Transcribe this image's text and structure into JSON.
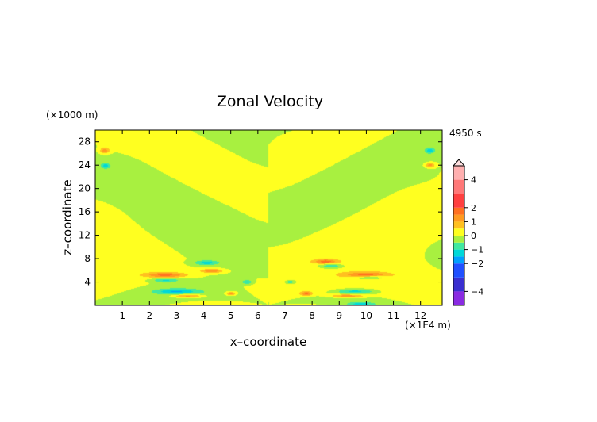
{
  "chart_data": {
    "type": "heatmap",
    "title": "Zonal Velocity",
    "xlabel": "x–coordinate",
    "ylabel": "z–coordinate",
    "x_unit": "(×1E4 m)",
    "y_unit": "(×1000 m)",
    "time_label": "4950 s",
    "xlim": [
      0,
      12.8
    ],
    "ylim": [
      0,
      30
    ],
    "x_ticks": [
      1,
      2,
      3,
      4,
      5,
      6,
      7,
      8,
      9,
      10,
      11,
      12
    ],
    "y_ticks": [
      4,
      8,
      12,
      16,
      20,
      24,
      28
    ],
    "grid": false,
    "colorbar": {
      "placement": "right",
      "range": [
        -5,
        5
      ],
      "tick_values": [
        4,
        2,
        1,
        0,
        -1,
        -2,
        -4
      ],
      "tick_labels": [
        "4",
        "2",
        "1",
        "0",
        "−1",
        "−2",
        "−4"
      ],
      "levels": [
        {
          "lo": -5,
          "hi": -4,
          "color": "#8a2be2"
        },
        {
          "lo": -4,
          "hi": -3,
          "color": "#3a2fd0"
        },
        {
          "lo": -3,
          "hi": -2,
          "color": "#2050ff"
        },
        {
          "lo": -2,
          "hi": -1.5,
          "color": "#00a0ff"
        },
        {
          "lo": -1.5,
          "hi": -1,
          "color": "#00d8d8"
        },
        {
          "lo": -1,
          "hi": -0.5,
          "color": "#40e8a0"
        },
        {
          "lo": -0.5,
          "hi": 0,
          "color": "#a8f040"
        },
        {
          "lo": 0,
          "hi": 0.5,
          "color": "#ffff20"
        },
        {
          "lo": 0.5,
          "hi": 1,
          "color": "#ffc020"
        },
        {
          "lo": 1,
          "hi": 1.5,
          "color": "#ff9a20"
        },
        {
          "lo": 1.5,
          "hi": 2,
          "color": "#ff7020"
        },
        {
          "lo": 2,
          "hi": 3,
          "color": "#ff4040"
        },
        {
          "lo": 3,
          "hi": 4,
          "color": "#ff7878"
        },
        {
          "lo": 4,
          "hi": 5,
          "color": "#ffb0b0"
        }
      ]
    },
    "field_features": [
      {
        "desc": "orange lobe",
        "x": 2.6,
        "z": 5.2,
        "sx": 0.75,
        "sz": 0.45,
        "value": 1.6
      },
      {
        "desc": "orange lobe",
        "x": 10.0,
        "z": 5.2,
        "sx": 0.75,
        "sz": 0.45,
        "value": 1.6
      },
      {
        "desc": "cyan lobe",
        "x": 3.0,
        "z": 2.4,
        "sx": 0.75,
        "sz": 0.45,
        "value": -1.3
      },
      {
        "desc": "cyan lobe",
        "x": 9.6,
        "z": 2.4,
        "sx": 0.75,
        "sz": 0.45,
        "value": -1.3
      },
      {
        "desc": "cyan lobe",
        "x": 10.1,
        "z": 4.8,
        "sx": 0.6,
        "sz": 0.35,
        "value": -1.2
      },
      {
        "desc": "cyan lobe",
        "x": 2.6,
        "z": 4.3,
        "sx": 0.5,
        "sz": 0.35,
        "value": -1.1
      },
      {
        "desc": "orange lobe",
        "x": 3.4,
        "z": 1.6,
        "sx": 0.6,
        "sz": 0.3,
        "value": 1.4
      },
      {
        "desc": "orange lobe",
        "x": 9.3,
        "z": 1.6,
        "sx": 0.6,
        "sz": 0.3,
        "value": 1.4
      },
      {
        "desc": "cyan lobe",
        "x": 4.1,
        "z": 7.3,
        "sx": 0.45,
        "sz": 0.4,
        "value": -1.2
      },
      {
        "desc": "cyan lobe",
        "x": 8.7,
        "z": 6.7,
        "sx": 0.45,
        "sz": 0.4,
        "value": -1.2
      },
      {
        "desc": "orange lobe",
        "x": 4.3,
        "z": 5.9,
        "sx": 0.4,
        "sz": 0.35,
        "value": 1.5
      },
      {
        "desc": "orange lobe",
        "x": 8.5,
        "z": 7.5,
        "sx": 0.4,
        "sz": 0.35,
        "value": 1.5
      },
      {
        "desc": "orange spot",
        "x": 0.35,
        "z": 26.5,
        "sx": 0.18,
        "sz": 0.5,
        "value": 1.3
      },
      {
        "desc": "cyan spot",
        "x": 0.38,
        "z": 23.9,
        "sx": 0.15,
        "sz": 0.4,
        "value": -1.1
      },
      {
        "desc": "cyan spot",
        "x": 12.35,
        "z": 26.5,
        "sx": 0.18,
        "sz": 0.5,
        "value": -1.2
      },
      {
        "desc": "orange spot",
        "x": 12.35,
        "z": 24.0,
        "sx": 0.18,
        "sz": 0.4,
        "value": 1.3
      },
      {
        "desc": "orange spot",
        "x": 5.0,
        "z": 2.0,
        "sx": 0.2,
        "sz": 0.35,
        "value": 1.4
      },
      {
        "desc": "orange spot",
        "x": 7.8,
        "z": 2.0,
        "sx": 0.2,
        "sz": 0.35,
        "value": 1.4
      },
      {
        "desc": "cyan spot",
        "x": 5.6,
        "z": 4.0,
        "sx": 0.2,
        "sz": 0.35,
        "value": -1.1
      },
      {
        "desc": "cyan spot",
        "x": 7.2,
        "z": 4.0,
        "sx": 0.2,
        "sz": 0.35,
        "value": -1.1
      },
      {
        "desc": "cyan spot",
        "x": 9.8,
        "z": 0.2,
        "sx": 0.4,
        "sz": 0.3,
        "value": -1.1
      }
    ]
  }
}
